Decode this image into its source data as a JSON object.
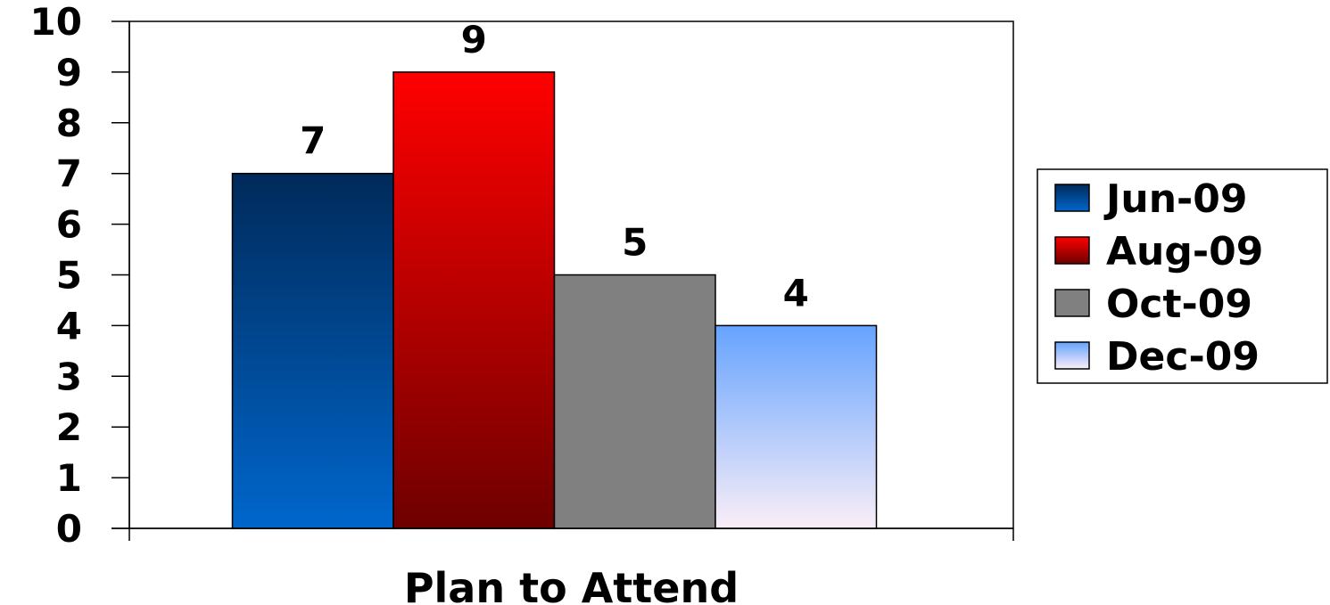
{
  "chart_data": {
    "type": "bar",
    "categories": [
      "Plan to Attend"
    ],
    "series": [
      {
        "name": "Jun-09",
        "values": [
          7
        ],
        "color": "#0a4f9e"
      },
      {
        "name": "Aug-09",
        "values": [
          9
        ],
        "color": "#d40000"
      },
      {
        "name": "Oct-09",
        "values": [
          5
        ],
        "color": "#808080"
      },
      {
        "name": "Dec-09",
        "values": [
          4
        ],
        "color": "#8fbcf0"
      }
    ],
    "ylim": [
      0,
      10
    ],
    "y_ticks": [
      "0",
      "1",
      "2",
      "3",
      "4",
      "5",
      "6",
      "7",
      "8",
      "9",
      "10"
    ],
    "data_labels": [
      "7",
      "9",
      "5",
      "4"
    ],
    "title": "",
    "xlabel": "",
    "ylabel": "",
    "grid": false,
    "legend_position": "right"
  }
}
